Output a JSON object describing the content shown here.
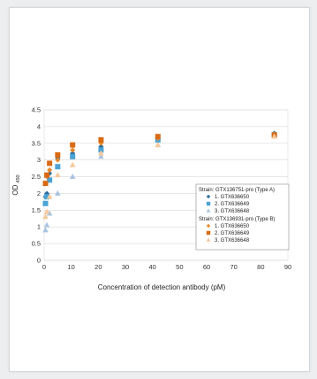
{
  "chart_data": {
    "type": "scatter",
    "xlabel": "Concentration of detection antibody (pM)",
    "ylabel": "OD",
    "ylabel_sub": "450",
    "xlim": [
      0,
      90
    ],
    "ylim": [
      0,
      4.5
    ],
    "xticks": [
      0,
      10,
      20,
      30,
      40,
      50,
      60,
      70,
      80,
      90
    ],
    "yticks": [
      0,
      0.5,
      1,
      1.5,
      2,
      2.5,
      3,
      3.5,
      4,
      4.5
    ],
    "grid": "horizontal",
    "legend_position": "right",
    "legend_groups": [
      {
        "heading": "Strain: GTX136751-pro (Type A)",
        "series": [
          {
            "name": "1. GTX636650",
            "marker": "diamond",
            "color": "#2d6e9e",
            "x": [
              0.5,
              1,
              2,
              5,
              10.5,
              21,
              42,
              85
            ],
            "y": [
              1.9,
              2.0,
              2.6,
              3.05,
              3.2,
              3.4,
              3.65,
              3.8
            ]
          },
          {
            "name": "2. GTX636649",
            "marker": "square",
            "color": "#4aa3d6",
            "x": [
              0.5,
              1,
              2,
              5,
              10.5,
              21,
              42,
              85
            ],
            "y": [
              1.7,
              1.9,
              2.4,
              2.8,
              3.1,
              3.3,
              3.6,
              3.75
            ]
          },
          {
            "name": "3. GTX636648",
            "marker": "triangle",
            "color": "#a9c3e0",
            "x": [
              0.5,
              1,
              2,
              5,
              10.5,
              21,
              42,
              85
            ],
            "y": [
              0.9,
              1.05,
              1.4,
              2.0,
              2.5,
              3.1,
              3.45,
              3.75
            ]
          }
        ]
      },
      {
        "heading": "Strain: GTX136931-pro (Type B)",
        "series": [
          {
            "name": "1. GTX636650",
            "marker": "diamond",
            "color": "#e8882a",
            "x": [
              0.5,
              1,
              2,
              5,
              10.5,
              21,
              42,
              85
            ],
            "y": [
              2.3,
              2.5,
              2.7,
              3.0,
              3.3,
              3.5,
              3.65,
              3.75
            ]
          },
          {
            "name": "2. GTX636649",
            "marker": "square",
            "color": "#d96b15",
            "x": [
              0.5,
              1,
              2,
              5,
              10.5,
              21,
              42,
              85
            ],
            "y": [
              2.3,
              2.55,
              2.9,
              3.15,
              3.45,
              3.6,
              3.7,
              3.75
            ]
          },
          {
            "name": "3. GTX636648",
            "marker": "triangle",
            "color": "#f7c89a",
            "x": [
              0.5,
              1,
              2,
              5,
              10.5,
              21,
              42,
              85
            ],
            "y": [
              1.3,
              1.45,
              1.9,
              2.55,
              2.85,
              3.2,
              3.45,
              3.7
            ]
          }
        ]
      }
    ]
  }
}
